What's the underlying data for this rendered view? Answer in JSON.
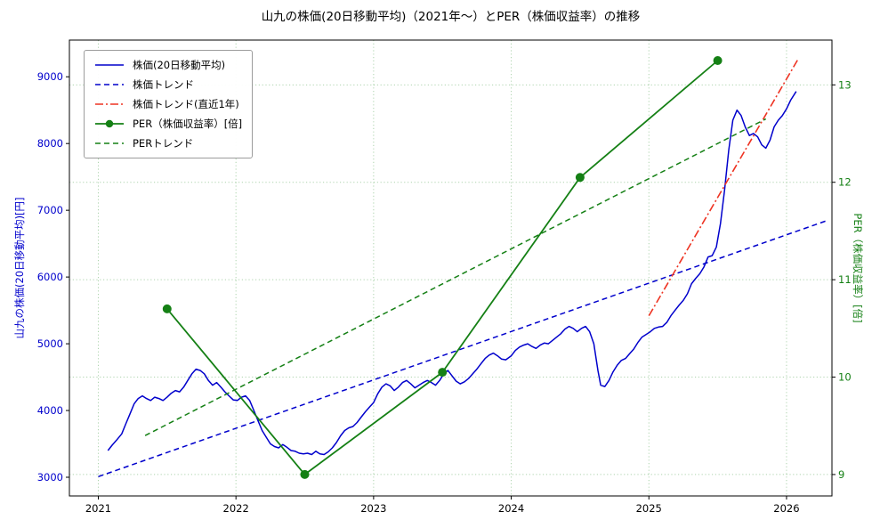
{
  "title": "山九の株価(20日移動平均)（2021年～）とPER（株価収益率）の推移",
  "chart_data": {
    "type": "line",
    "title": "山九の株価(20日移動平均)（2021年～）とPER（株価収益率）の推移",
    "x_axis": {
      "ticks": [
        2021,
        2022,
        2023,
        2024,
        2025,
        2026
      ],
      "range": [
        2020.79,
        2026.33
      ]
    },
    "left_axis": {
      "label": "山九の株価(20日移動平均)[円]",
      "ticks": [
        3000,
        4000,
        5000,
        6000,
        7000,
        8000,
        9000
      ],
      "range": [
        2720,
        9550
      ],
      "color": "#0000cc"
    },
    "right_axis": {
      "label": "PER（株価収益率）[倍]",
      "ticks": [
        9,
        10,
        11,
        12,
        13
      ],
      "range": [
        8.78,
        13.46
      ],
      "color": "#158015"
    },
    "grid": {
      "color": "#158015",
      "style": "dotted",
      "vertical_at": "x_ticks",
      "horizontal_at": "right_axis_ticks",
      "opacity": 0.35
    },
    "legend_position": "upper-left",
    "series": [
      {
        "name": "株価(20日移動平均)",
        "axis": "left",
        "color": "#0000cc",
        "style": "solid",
        "marker": null,
        "x": [
          2021.07,
          2021.1,
          2021.13,
          2021.17,
          2021.2,
          2021.23,
          2021.26,
          2021.29,
          2021.32,
          2021.35,
          2021.38,
          2021.41,
          2021.44,
          2021.47,
          2021.5,
          2021.53,
          2021.56,
          2021.59,
          2021.62,
          2021.65,
          2021.68,
          2021.71,
          2021.74,
          2021.77,
          2021.8,
          2021.83,
          2021.86,
          2021.89,
          2021.92,
          2021.95,
          2021.98,
          2022.01,
          2022.04,
          2022.07,
          2022.1,
          2022.13,
          2022.16,
          2022.19,
          2022.22,
          2022.25,
          2022.28,
          2022.31,
          2022.34,
          2022.37,
          2022.4,
          2022.43,
          2022.46,
          2022.49,
          2022.52,
          2022.55,
          2022.58,
          2022.61,
          2022.64,
          2022.67,
          2022.7,
          2022.73,
          2022.76,
          2022.79,
          2022.82,
          2022.85,
          2022.88,
          2022.91,
          2022.94,
          2022.97,
          2023.0,
          2023.03,
          2023.06,
          2023.09,
          2023.12,
          2023.15,
          2023.18,
          2023.21,
          2023.24,
          2023.27,
          2023.3,
          2023.33,
          2023.36,
          2023.39,
          2023.42,
          2023.45,
          2023.48,
          2023.51,
          2023.54,
          2023.57,
          2023.6,
          2023.63,
          2023.66,
          2023.69,
          2023.72,
          2023.75,
          2023.78,
          2023.81,
          2023.84,
          2023.87,
          2023.9,
          2023.93,
          2023.96,
          2024.0,
          2024.03,
          2024.06,
          2024.09,
          2024.12,
          2024.15,
          2024.18,
          2024.21,
          2024.24,
          2024.27,
          2024.3,
          2024.33,
          2024.36,
          2024.39,
          2024.42,
          2024.45,
          2024.48,
          2024.51,
          2024.54,
          2024.57,
          2024.6,
          2024.63,
          2024.65,
          2024.68,
          2024.71,
          2024.74,
          2024.77,
          2024.8,
          2024.83,
          2024.86,
          2024.89,
          2024.92,
          2024.95,
          2024.98,
          2025.01,
          2025.04,
          2025.07,
          2025.1,
          2025.13,
          2025.16,
          2025.19,
          2025.22,
          2025.25,
          2025.28,
          2025.31,
          2025.34,
          2025.37,
          2025.4,
          2025.43,
          2025.46,
          2025.49,
          2025.52,
          2025.55,
          2025.58,
          2025.61,
          2025.64,
          2025.67,
          2025.7,
          2025.73,
          2025.76,
          2025.79,
          2025.82,
          2025.85,
          2025.88,
          2025.91,
          2025.94,
          2025.97,
          2026.0,
          2026.03,
          2026.07
        ],
        "y": [
          3400,
          3480,
          3550,
          3650,
          3800,
          3950,
          4100,
          4180,
          4220,
          4180,
          4150,
          4200,
          4180,
          4150,
          4200,
          4260,
          4300,
          4280,
          4350,
          4450,
          4550,
          4620,
          4600,
          4550,
          4450,
          4380,
          4420,
          4350,
          4280,
          4220,
          4160,
          4150,
          4200,
          4220,
          4150,
          4000,
          3850,
          3700,
          3600,
          3500,
          3460,
          3440,
          3490,
          3450,
          3400,
          3390,
          3360,
          3350,
          3360,
          3340,
          3390,
          3350,
          3340,
          3380,
          3440,
          3520,
          3620,
          3700,
          3740,
          3760,
          3820,
          3900,
          3980,
          4050,
          4120,
          4250,
          4350,
          4400,
          4370,
          4300,
          4350,
          4420,
          4450,
          4400,
          4340,
          4380,
          4420,
          4450,
          4420,
          4380,
          4450,
          4550,
          4600,
          4520,
          4440,
          4400,
          4430,
          4480,
          4550,
          4620,
          4700,
          4780,
          4830,
          4860,
          4820,
          4770,
          4760,
          4820,
          4900,
          4950,
          4980,
          5000,
          4960,
          4930,
          4980,
          5010,
          5000,
          5050,
          5100,
          5150,
          5220,
          5260,
          5230,
          5180,
          5230,
          5260,
          5180,
          5000,
          4600,
          4380,
          4360,
          4450,
          4580,
          4680,
          4750,
          4780,
          4850,
          4920,
          5020,
          5100,
          5140,
          5180,
          5230,
          5250,
          5260,
          5320,
          5420,
          5500,
          5580,
          5650,
          5750,
          5900,
          5980,
          6050,
          6150,
          6300,
          6320,
          6450,
          6800,
          7300,
          7900,
          8350,
          8500,
          8420,
          8250,
          8120,
          8150,
          8100,
          7980,
          7930,
          8050,
          8250,
          8350,
          8420,
          8520,
          8650,
          8780
        ]
      },
      {
        "name": "株価トレンド",
        "axis": "left",
        "color": "#0000cc",
        "style": "dashed",
        "marker": null,
        "x": [
          2021.0,
          2026.3
        ],
        "y": [
          3010,
          6850
        ]
      },
      {
        "name": "株価トレンド(直近1年)",
        "axis": "left",
        "color": "#ee3322",
        "style": "dashdot",
        "marker": null,
        "x": [
          2025.0,
          2026.08
        ],
        "y": [
          5420,
          9250
        ]
      },
      {
        "name": "PER（株価収益率）[倍]",
        "axis": "right",
        "color": "#158015",
        "style": "solid",
        "marker": "circle",
        "x": [
          2021.5,
          2022.5,
          2023.5,
          2024.5,
          2025.5
        ],
        "y": [
          10.7,
          9.0,
          10.05,
          12.05,
          13.25
        ]
      },
      {
        "name": "PERトレンド",
        "axis": "right",
        "color": "#158015",
        "style": "dashed",
        "marker": null,
        "x": [
          2021.34,
          2025.85
        ],
        "y": [
          9.4,
          12.65
        ]
      }
    ]
  }
}
